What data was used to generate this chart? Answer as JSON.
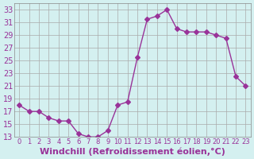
{
  "x": [
    0,
    1,
    2,
    3,
    4,
    5,
    6,
    7,
    8,
    9,
    10,
    11,
    12,
    13,
    14,
    15,
    16,
    17,
    18,
    19,
    20,
    21,
    22,
    23
  ],
  "y": [
    18,
    17,
    17,
    16,
    15.5,
    15.5,
    13.5,
    13,
    13,
    14,
    18,
    18.5,
    25.5,
    31.5,
    32,
    33,
    30,
    29.5,
    29.5,
    29.5,
    29,
    28.5,
    22.5,
    21
  ],
  "line_color": "#993399",
  "marker": "D",
  "marker_size": 3,
  "bg_color": "#d4f0f0",
  "grid_color": "#aaaaaa",
  "xlabel": "Windchill (Refroidissement éolien,°C)",
  "xlabel_color": "#993399",
  "xlabel_fontsize": 8,
  "tick_color": "#993399",
  "tick_fontsize": 7,
  "ylim": [
    13,
    34
  ],
  "yticks": [
    13,
    15,
    17,
    19,
    21,
    23,
    25,
    27,
    29,
    31,
    33
  ],
  "xlim": [
    -0.5,
    23.5
  ],
  "xticks": [
    0,
    1,
    2,
    3,
    4,
    5,
    6,
    7,
    8,
    9,
    10,
    11,
    12,
    13,
    14,
    15,
    16,
    17,
    18,
    19,
    20,
    21,
    22,
    23
  ],
  "xtick_labels": [
    "0",
    "1",
    "2",
    "3",
    "4",
    "5",
    "6",
    "7",
    "8",
    "9",
    "10",
    "11",
    "12",
    "13",
    "14",
    "15",
    "16",
    "17",
    "18",
    "19",
    "20",
    "21",
    "22",
    "23"
  ]
}
